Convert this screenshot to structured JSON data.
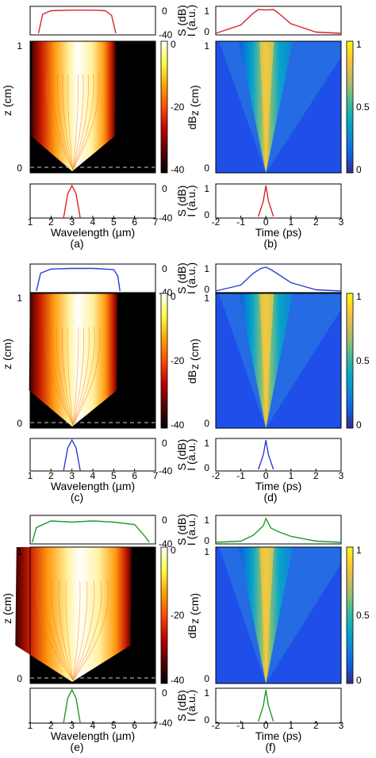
{
  "figure": {
    "panels": [
      {
        "id": "a",
        "caption": "(a)",
        "color": "#d8232a",
        "width": "narrow"
      },
      {
        "id": "b",
        "caption": "(b)",
        "color": "#d8232a"
      },
      {
        "id": "c",
        "caption": "(c)",
        "color": "#2a3fd0",
        "width": "medium"
      },
      {
        "id": "d",
        "caption": "(d)",
        "color": "#2a3fd0"
      },
      {
        "id": "e",
        "caption": "(e)",
        "color": "#1f9a2a",
        "width": "wide"
      },
      {
        "id": "f",
        "caption": "(f)",
        "color": "#1f9a2a"
      }
    ],
    "labels": {
      "wavelength_axis": "Wavelength (µm)",
      "time_axis": "Time (ps)",
      "z_axis": "z (cm)",
      "spectrum_axis": "S (dB)",
      "intensity_axis": "I (a.u.)",
      "colorbar_db": "dB"
    },
    "ticks": {
      "wavelength": [
        "1",
        "2",
        "3",
        "4",
        "5",
        "6",
        "7"
      ],
      "time": [
        "-2",
        "-1",
        "0",
        "1",
        "2",
        "3"
      ],
      "z": [
        "0",
        "1"
      ],
      "spectrum_db": [
        "0",
        "-40"
      ],
      "intensity": [
        "0",
        "1"
      ],
      "colorbar_db": [
        "0",
        "-20",
        "-40"
      ],
      "colorbar_lin": [
        "0",
        "0.5",
        "1"
      ]
    },
    "colors": {
      "hot_map": [
        "#000000",
        "#5a0000",
        "#c00000",
        "#ff4a00",
        "#ffa500",
        "#ffff40",
        "#ffffff"
      ],
      "parula_map": [
        "#352a87",
        "#0f5cdd",
        "#1481d6",
        "#06a4ca",
        "#2eb7a4",
        "#87bf77",
        "#d1bb59",
        "#fec832",
        "#f9fb0e"
      ]
    }
  },
  "chart_data": [
    {
      "type": "heatmap",
      "panel": "a",
      "x": "wavelength (µm)",
      "y": "z (cm)",
      "xlim": [
        1,
        7
      ],
      "ylim": [
        0,
        1
      ],
      "zlim_db": [
        -40,
        0
      ],
      "output_spectrum_db": {
        "x": [
          1.4,
          1.6,
          2.0,
          3.0,
          4.0,
          4.6,
          4.9,
          5.1
        ],
        "y": [
          -40,
          -8,
          -2,
          -1,
          -1,
          -2,
          -10,
          -40
        ]
      },
      "input_spectrum_db": {
        "x": [
          2.6,
          2.8,
          3.0,
          3.2,
          3.4
        ],
        "y": [
          -40,
          -10,
          0,
          -10,
          -40
        ]
      }
    },
    {
      "type": "heatmap",
      "panel": "b",
      "x": "time (ps)",
      "y": "z (cm)",
      "xlim": [
        -2,
        3
      ],
      "ylim": [
        0,
        1
      ],
      "zlim": [
        0,
        1
      ],
      "output_intensity": {
        "x": [
          -2,
          -1,
          -0.5,
          -0.3,
          0,
          0.3,
          0.5,
          1,
          2,
          3
        ],
        "y": [
          0,
          0.35,
          0.85,
          1,
          0.98,
          1,
          0.85,
          0.4,
          0.05,
          0
        ]
      },
      "input_intensity": {
        "x": [
          -0.3,
          -0.1,
          0,
          0.1,
          0.3
        ],
        "y": [
          0,
          0.5,
          1,
          0.5,
          0
        ]
      }
    },
    {
      "type": "heatmap",
      "panel": "c",
      "x": "wavelength (µm)",
      "y": "z (cm)",
      "xlim": [
        1,
        7
      ],
      "ylim": [
        0,
        1
      ],
      "zlim_db": [
        -40,
        0
      ],
      "output_spectrum_db": {
        "x": [
          1.3,
          1.5,
          2.0,
          3.0,
          4.0,
          5.0,
          5.2,
          5.3
        ],
        "y": [
          -40,
          -10,
          -3,
          -2,
          -2,
          -4,
          -15,
          -40
        ]
      },
      "input_spectrum_db": {
        "x": [
          2.6,
          2.8,
          3.0,
          3.2,
          3.4
        ],
        "y": [
          -40,
          -10,
          0,
          -10,
          -40
        ]
      }
    },
    {
      "type": "heatmap",
      "panel": "d",
      "x": "time (ps)",
      "y": "z (cm)",
      "xlim": [
        -2,
        3
      ],
      "ylim": [
        0,
        1
      ],
      "zlim": [
        0,
        1
      ],
      "output_intensity": {
        "x": [
          -2,
          -1,
          -0.5,
          -0.2,
          0,
          0.2,
          0.5,
          1,
          2,
          3
        ],
        "y": [
          0,
          0.25,
          0.75,
          0.95,
          1,
          0.9,
          0.7,
          0.35,
          0.05,
          0
        ]
      },
      "input_intensity": {
        "x": [
          -0.3,
          -0.1,
          0,
          0.1,
          0.3
        ],
        "y": [
          0,
          0.5,
          1,
          0.5,
          0
        ]
      }
    },
    {
      "type": "heatmap",
      "panel": "e",
      "x": "wavelength (µm)",
      "y": "z (cm)",
      "xlim": [
        1,
        7
      ],
      "ylim": [
        0,
        1
      ],
      "zlim_db": [
        -40,
        0
      ],
      "output_spectrum_db": {
        "x": [
          1.1,
          1.3,
          2.0,
          3.0,
          4.0,
          5.0,
          6.0,
          6.5,
          6.7
        ],
        "y": [
          -40,
          -15,
          -4,
          -6,
          -4,
          -6,
          -10,
          -30,
          -40
        ]
      },
      "input_spectrum_db": {
        "x": [
          2.6,
          2.8,
          3.0,
          3.2,
          3.4
        ],
        "y": [
          -40,
          -10,
          0,
          -10,
          -40
        ]
      }
    },
    {
      "type": "heatmap",
      "panel": "f",
      "x": "time (ps)",
      "y": "z (cm)",
      "xlim": [
        -2,
        3
      ],
      "ylim": [
        0,
        1
      ],
      "zlim": [
        0,
        1
      ],
      "output_intensity": {
        "x": [
          -2,
          -1,
          -0.5,
          -0.1,
          0,
          0.2,
          0.5,
          1,
          2,
          3
        ],
        "y": [
          0,
          0.05,
          0.3,
          0.7,
          1,
          0.6,
          0.45,
          0.25,
          0.05,
          0
        ]
      },
      "input_intensity": {
        "x": [
          -0.3,
          -0.1,
          0,
          0.1,
          0.3
        ],
        "y": [
          0,
          0.5,
          1,
          0.5,
          0
        ]
      }
    }
  ]
}
